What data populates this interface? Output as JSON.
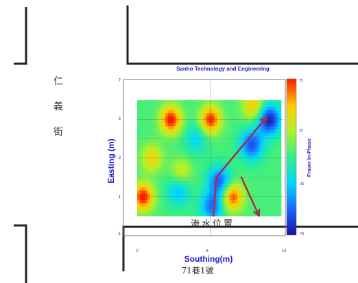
{
  "chart_data": {
    "type": "heatmap",
    "title": "Sanho Technology and Engineering",
    "xlabel": "Southing(m)",
    "ylabel": "Easting (m)",
    "xlim": [
      0,
      10
    ],
    "ylim": [
      -1,
      7
    ],
    "x_ticks": [
      "0",
      "5",
      "10"
    ],
    "y_ticks": [
      "-1",
      "1",
      "3",
      "5",
      "7"
    ],
    "data_extent": {
      "x": [
        0,
        9.8
      ],
      "y": [
        0,
        6
      ]
    },
    "grid": true,
    "colorbar": {
      "label": "Fraser In-Phase",
      "min": -75,
      "max": 75,
      "ticks": [
        "75",
        "25",
        "-25",
        "-75"
      ],
      "colors": [
        "#ff1a00",
        "#ffcc00",
        "#b5f02a",
        "#33ee88",
        "#00d8ff",
        "#1a6aff",
        "#1a10a0"
      ]
    },
    "anomalies": [
      {
        "kind": "high",
        "x": 0.4,
        "y": 1.0,
        "strength": 1.0
      },
      {
        "kind": "high",
        "x": 2.3,
        "y": 5.0,
        "strength": 1.0
      },
      {
        "kind": "high",
        "x": 5.0,
        "y": 5.0,
        "strength": 0.95
      },
      {
        "kind": "high",
        "x": 6.5,
        "y": 1.0,
        "strength": 0.9
      },
      {
        "kind": "high",
        "x": 1.0,
        "y": 3.0,
        "strength": 0.55
      },
      {
        "kind": "high",
        "x": 7.9,
        "y": 5.7,
        "strength": 0.6
      },
      {
        "kind": "high",
        "x": 3.0,
        "y": 2.3,
        "strength": 0.4
      },
      {
        "kind": "low",
        "x": 9.0,
        "y": 5.0,
        "strength": 1.0
      },
      {
        "kind": "low",
        "x": 7.8,
        "y": 3.7,
        "strength": 0.8
      },
      {
        "kind": "low",
        "x": 5.6,
        "y": 1.8,
        "strength": 0.75
      },
      {
        "kind": "low",
        "x": 5.1,
        "y": 0.5,
        "strength": 0.7
      },
      {
        "kind": "low",
        "x": 2.8,
        "y": 1.3,
        "strength": 0.45
      },
      {
        "kind": "low",
        "x": 4.0,
        "y": 4.0,
        "strength": 0.35
      }
    ],
    "arrows": [
      {
        "from": [
          5.2,
          0.0
        ],
        "to": [
          5.4,
          2.0
        ]
      },
      {
        "from": [
          5.4,
          2.0
        ],
        "to": [
          8.8,
          5.1
        ]
      },
      {
        "from": [
          7.1,
          2.0
        ],
        "to": [
          8.3,
          0.0
        ]
      }
    ]
  },
  "annotations": {
    "street_name": [
      "仁",
      "義",
      "街"
    ],
    "seepage_label": "渗水位置",
    "lane_label": "71巷1號"
  }
}
